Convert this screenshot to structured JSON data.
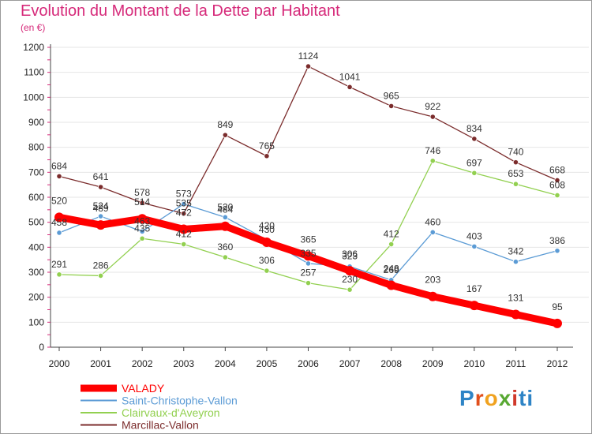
{
  "title": "Evolution du Montant de la Dette par Habitant",
  "unit": "(en €)",
  "logo": {
    "letters": [
      "P",
      "r",
      "o",
      "x",
      "i",
      "ti"
    ],
    "colors": [
      "#2e84c6",
      "#e14f1c",
      "#f0a21f",
      "#58a832",
      "#d0392b",
      "#2e84c6"
    ]
  },
  "chart_data": {
    "type": "line",
    "title": "Evolution du Montant de la Dette par Habitant",
    "ylabel": "(en €)",
    "xlabel": "",
    "x": [
      "2000",
      "2001",
      "2002",
      "2003",
      "2004",
      "2005",
      "2006",
      "2007",
      "2008",
      "2009",
      "2010",
      "2011",
      "2012"
    ],
    "ylim": [
      0,
      1200
    ],
    "yticks": [
      0,
      100,
      200,
      300,
      400,
      500,
      600,
      700,
      800,
      900,
      1000,
      1100,
      1200
    ],
    "grid": true,
    "legend_position": "bottom-left",
    "series": [
      {
        "name": "VALADY",
        "color": "#ff0000",
        "values": [
          520,
          489,
          514,
          472,
          484,
          420,
          365,
          306,
          248,
          203,
          167,
          131,
          95
        ]
      },
      {
        "name": "Saint-Christophe-Vallon",
        "color": "#5b9bd5",
        "values": [
          458,
          524,
          463,
          573,
          520,
          430,
          335,
          323,
          269,
          460,
          403,
          342,
          386
        ]
      },
      {
        "name": "Clairvaux-d'Aveyron",
        "color": "#92d050",
        "values": [
          291,
          286,
          435,
          412,
          360,
          306,
          257,
          230,
          412,
          746,
          697,
          653,
          608
        ]
      },
      {
        "name": "Marcillac-Vallon",
        "color": "#7b2c2c",
        "values": [
          684,
          641,
          578,
          535,
          849,
          765,
          1124,
          1041,
          965,
          922,
          834,
          740,
          668
        ]
      }
    ]
  }
}
